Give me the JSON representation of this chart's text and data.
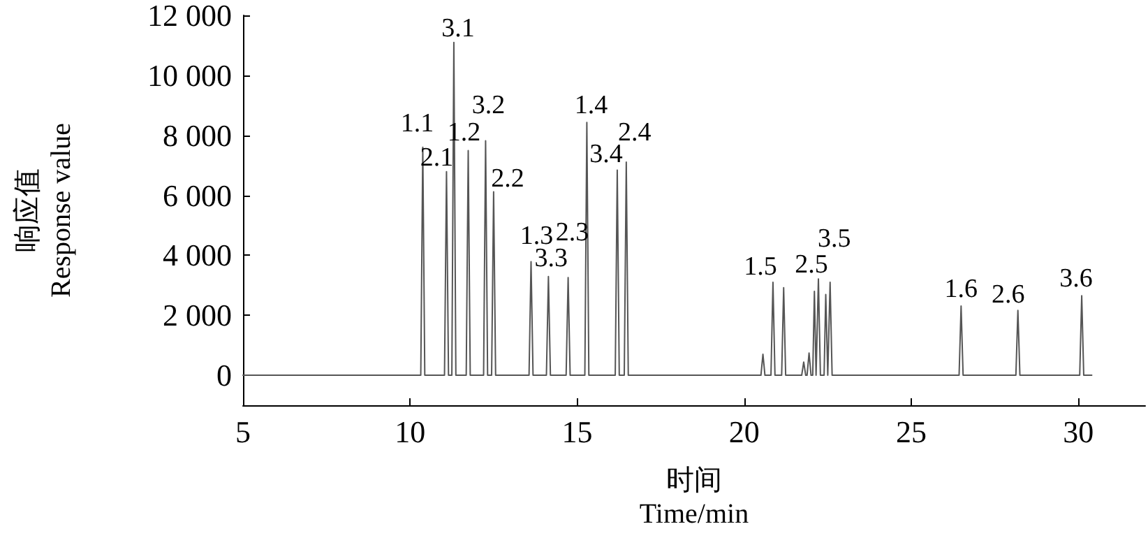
{
  "chart_data": {
    "type": "line",
    "xlabel": "时间\nTime/min",
    "ylabel": "响应值\nResponse value",
    "xlim": [
      5,
      32
    ],
    "xticks": [
      5,
      10,
      15,
      20,
      25,
      30
    ],
    "ylim": [
      -1000,
      12000
    ],
    "yticks": [
      {
        "value": 0,
        "label": "0"
      },
      {
        "value": 2000,
        "label": "2 000"
      },
      {
        "value": 4000,
        "label": "4 000"
      },
      {
        "value": 6000,
        "label": "6 000"
      },
      {
        "value": 8000,
        "label": "8 000"
      },
      {
        "value": 10000,
        "label": "10 000"
      },
      {
        "value": 12000,
        "label": "12 000"
      }
    ],
    "grid": false,
    "marker": "none",
    "line_style": "solid",
    "series": [
      {
        "color": "#555555",
        "x": [
          5,
          10.32,
          10.38,
          10.44,
          11.03,
          11.09,
          11.15,
          11.25,
          11.31,
          11.37,
          11.68,
          11.74,
          11.8,
          12.2,
          12.26,
          12.32,
          12.44,
          12.5,
          12.56,
          13.56,
          13.62,
          13.68,
          14.08,
          14.14,
          14.2,
          14.67,
          14.73,
          14.79,
          15.23,
          15.29,
          15.35,
          16.14,
          16.2,
          16.26,
          16.41,
          16.47,
          16.53,
          20.5,
          20.56,
          20.62,
          20.8,
          20.86,
          20.92,
          21.12,
          21.18,
          21.24,
          21.72,
          21.78,
          21.84,
          21.88,
          21.94,
          22.0,
          22.05,
          22.1,
          22.15,
          22.17,
          22.22,
          22.28,
          22.39,
          22.44,
          22.5,
          22.52,
          22.57,
          22.63,
          26.43,
          26.49,
          26.55,
          28.13,
          28.19,
          28.25,
          30.04,
          30.1,
          30.16,
          30.4
        ],
        "values": [
          0,
          0,
          7600,
          0,
          0,
          6790,
          0,
          0,
          11100,
          0,
          0,
          7490,
          0,
          0,
          7820,
          0,
          0,
          6120,
          0,
          0,
          3790,
          0,
          0,
          3290,
          0,
          0,
          3260,
          0,
          0,
          8430,
          0,
          0,
          6840,
          0,
          0,
          7110,
          0,
          0,
          700,
          0,
          0,
          3100,
          0,
          0,
          2920,
          0,
          0,
          440,
          0,
          0,
          740,
          0,
          0,
          2800,
          0,
          0,
          3210,
          0,
          0,
          2690,
          0,
          0,
          3100,
          0,
          0,
          2310,
          0,
          0,
          2160,
          0,
          0,
          2650,
          0,
          0
        ]
      }
    ],
    "annotations": [
      {
        "text": "1.1",
        "x": 10.38,
        "y": 7600
      },
      {
        "text": "2.1",
        "x": 11.09,
        "y": 6790
      },
      {
        "text": "3.1",
        "x": 11.31,
        "y": 11100
      },
      {
        "text": "1.2",
        "x": 11.74,
        "y": 7490
      },
      {
        "text": "3.2",
        "x": 12.26,
        "y": 7820
      },
      {
        "text": "2.2",
        "x": 12.5,
        "y": 6120
      },
      {
        "text": "1.3",
        "x": 13.62,
        "y": 3790
      },
      {
        "text": "3.3",
        "x": 14.14,
        "y": 3290
      },
      {
        "text": "2.3",
        "x": 14.73,
        "y": 3260
      },
      {
        "text": "1.4",
        "x": 15.29,
        "y": 8430
      },
      {
        "text": "3.4",
        "x": 16.2,
        "y": 6840
      },
      {
        "text": "2.4",
        "x": 16.47,
        "y": 7110
      },
      {
        "text": "1.5",
        "x": 20.86,
        "y": 3100
      },
      {
        "text": "2.5",
        "x": 22.22,
        "y": 3210
      },
      {
        "text": "3.5",
        "x": 22.57,
        "y": 3100
      },
      {
        "text": "1.6",
        "x": 26.49,
        "y": 2310
      },
      {
        "text": "2.6",
        "x": 28.19,
        "y": 2160
      },
      {
        "text": "3.6",
        "x": 30.1,
        "y": 2650
      }
    ]
  }
}
